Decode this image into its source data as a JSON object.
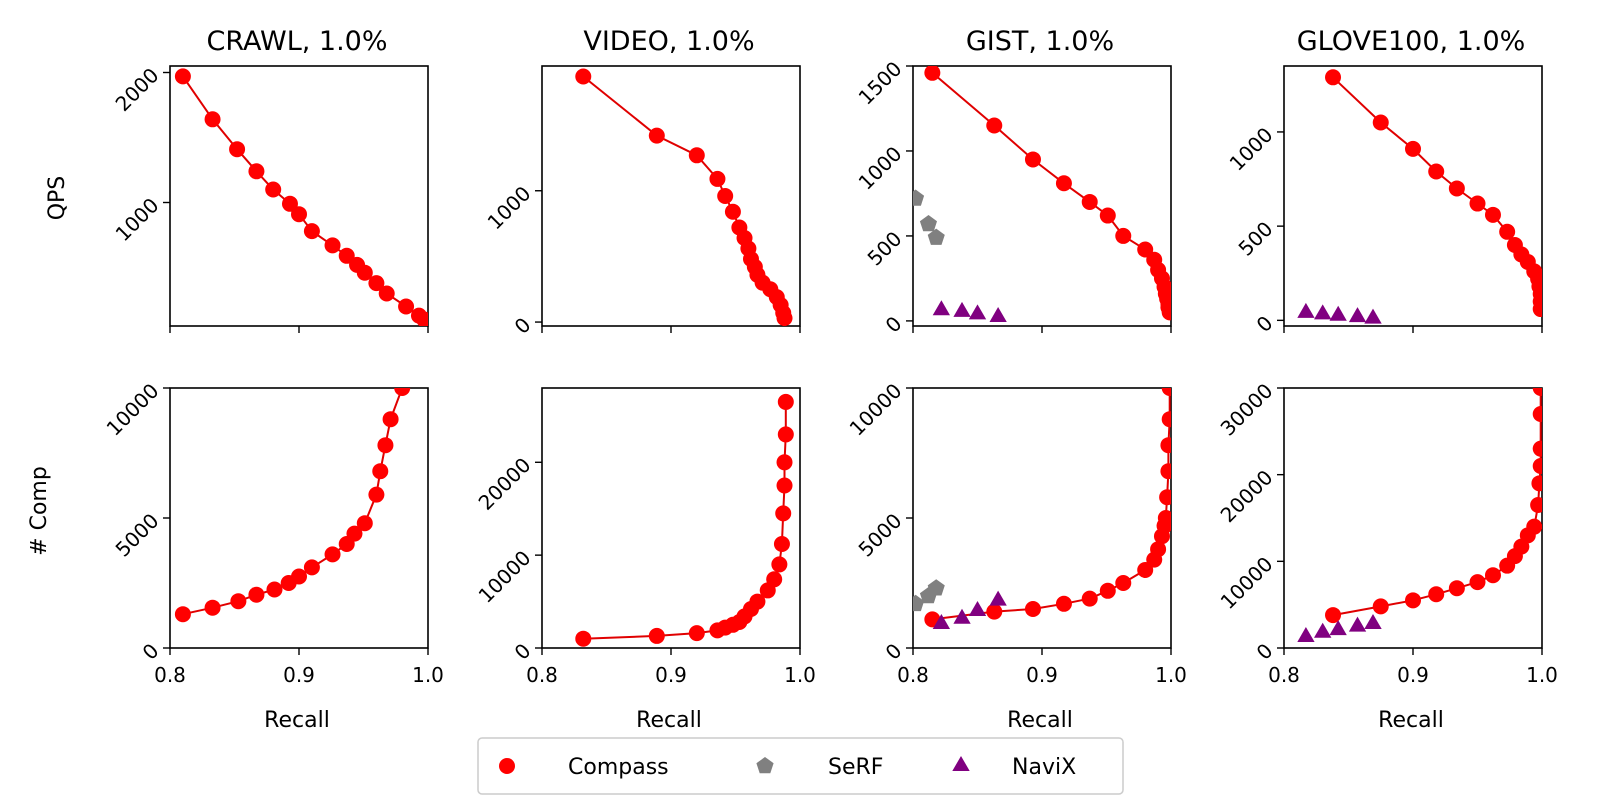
{
  "legend": [
    "Compass",
    "SeRF",
    "NaviX"
  ],
  "colors": {
    "Compass": "#ff0000",
    "Compass_line": "#e00000",
    "SeRF": "#808080",
    "NaviX": "#800080"
  },
  "marker_shapes": {
    "Compass": "circle",
    "SeRF": "pentagon",
    "NaviX": "triangle"
  },
  "xlabel": "Recall",
  "ylabel_row1": "QPS",
  "ylabel_row2": "# Comp",
  "x_ticks": [
    0.8,
    0.9,
    1.0
  ],
  "chart_data": [
    {
      "type": "line",
      "title": "CRAWL, 1.0%",
      "row": 0,
      "col": 0,
      "xlim": [
        0.8,
        1.0
      ],
      "ylim": [
        50,
        2050
      ],
      "yticks": [
        1000,
        2000
      ],
      "series": [
        {
          "name": "Compass",
          "x": [
            0.81,
            0.833,
            0.852,
            0.867,
            0.88,
            0.893,
            0.9,
            0.91,
            0.926,
            0.937,
            0.945,
            0.951,
            0.96,
            0.968,
            0.983,
            0.993,
            0.997
          ],
          "y": [
            1970,
            1640,
            1410,
            1240,
            1100,
            990,
            910,
            780,
            670,
            590,
            520,
            460,
            380,
            300,
            200,
            130,
            100
          ]
        }
      ]
    },
    {
      "type": "line",
      "title": "VIDEO, 1.0%",
      "row": 0,
      "col": 1,
      "xlim": [
        0.8,
        1.0
      ],
      "ylim": [
        -30,
        1950
      ],
      "yticks": [
        0,
        1000
      ],
      "series": [
        {
          "name": "Compass",
          "x": [
            0.832,
            0.889,
            0.92,
            0.936,
            0.942,
            0.948,
            0.953,
            0.957,
            0.96,
            0.962,
            0.965,
            0.967,
            0.971,
            0.977,
            0.982,
            0.985,
            0.987,
            0.988
          ],
          "y": [
            1870,
            1420,
            1270,
            1090,
            960,
            840,
            720,
            640,
            560,
            480,
            420,
            360,
            300,
            250,
            190,
            130,
            70,
            30
          ]
        }
      ]
    },
    {
      "type": "line",
      "title": "GIST, 1.0%",
      "row": 0,
      "col": 2,
      "xlim": [
        0.8,
        1.0
      ],
      "ylim": [
        -30,
        1500
      ],
      "yticks": [
        0,
        500,
        1000,
        1500
      ],
      "series": [
        {
          "name": "Compass",
          "x": [
            0.815,
            0.863,
            0.893,
            0.917,
            0.937,
            0.951,
            0.963,
            0.98,
            0.987,
            0.99,
            0.993,
            0.995,
            0.996,
            0.997,
            0.998,
            0.998,
            0.999,
            0.999
          ],
          "y": [
            1460,
            1150,
            950,
            810,
            700,
            620,
            500,
            420,
            360,
            300,
            250,
            200,
            160,
            130,
            100,
            80,
            60,
            50
          ]
        },
        {
          "name": "SeRF",
          "x": [
            0.802,
            0.812,
            0.818
          ],
          "y": [
            720,
            570,
            490
          ]
        },
        {
          "name": "NaviX",
          "x": [
            0.822,
            0.838,
            0.85,
            0.866
          ],
          "y": [
            75,
            65,
            50,
            35
          ]
        }
      ]
    },
    {
      "type": "line",
      "title": "GLOVE100, 1.0%",
      "row": 0,
      "col": 3,
      "xlim": [
        0.8,
        1.0
      ],
      "ylim": [
        -30,
        1350
      ],
      "yticks": [
        0,
        500,
        1000
      ],
      "series": [
        {
          "name": "Compass",
          "x": [
            0.838,
            0.875,
            0.9,
            0.918,
            0.934,
            0.95,
            0.962,
            0.973,
            0.979,
            0.984,
            0.989,
            0.994,
            0.997,
            0.998,
            0.999,
            0.999,
            0.999
          ],
          "y": [
            1290,
            1050,
            910,
            790,
            700,
            620,
            560,
            470,
            400,
            350,
            310,
            260,
            220,
            180,
            140,
            100,
            60
          ]
        },
        {
          "name": "NaviX",
          "x": [
            0.817,
            0.83,
            0.842,
            0.857,
            0.869
          ],
          "y": [
            50,
            42,
            35,
            28,
            20
          ]
        }
      ]
    },
    {
      "type": "line",
      "row": 1,
      "col": 0,
      "xlim": [
        0.8,
        1.0
      ],
      "ylim": [
        0,
        10000
      ],
      "yticks": [
        0,
        5000,
        10000
      ],
      "series": [
        {
          "name": "Compass",
          "x": [
            0.81,
            0.833,
            0.853,
            0.867,
            0.881,
            0.892,
            0.9,
            0.91,
            0.926,
            0.937,
            0.943,
            0.951,
            0.96,
            0.963,
            0.967,
            0.971,
            0.98
          ],
          "y": [
            1300,
            1550,
            1800,
            2050,
            2250,
            2500,
            2750,
            3100,
            3600,
            4000,
            4400,
            4800,
            5900,
            6800,
            7800,
            8800,
            10000
          ]
        }
      ]
    },
    {
      "type": "line",
      "row": 1,
      "col": 1,
      "xlim": [
        0.8,
        1.0
      ],
      "ylim": [
        0,
        28000
      ],
      "yticks": [
        0,
        10000,
        20000
      ],
      "series": [
        {
          "name": "Compass",
          "x": [
            0.832,
            0.889,
            0.92,
            0.936,
            0.942,
            0.948,
            0.953,
            0.957,
            0.962,
            0.967,
            0.975,
            0.98,
            0.984,
            0.986,
            0.987,
            0.988,
            0.988,
            0.989,
            0.989
          ],
          "y": [
            1000,
            1300,
            1600,
            1900,
            2200,
            2500,
            2800,
            3400,
            4200,
            5000,
            6200,
            7400,
            9000,
            11200,
            14500,
            17500,
            20000,
            23000,
            26500
          ]
        }
      ]
    },
    {
      "type": "line",
      "row": 1,
      "col": 2,
      "xlim": [
        0.8,
        1.0
      ],
      "ylim": [
        0,
        10000
      ],
      "yticks": [
        0,
        5000,
        10000
      ],
      "series": [
        {
          "name": "Compass",
          "x": [
            0.815,
            0.863,
            0.893,
            0.917,
            0.937,
            0.951,
            0.963,
            0.98,
            0.987,
            0.99,
            0.993,
            0.995,
            0.996,
            0.997,
            0.998,
            0.998,
            0.999,
            0.999
          ],
          "y": [
            1100,
            1400,
            1500,
            1700,
            1900,
            2200,
            2500,
            3000,
            3400,
            3800,
            4300,
            4700,
            5000,
            5800,
            6800,
            7800,
            8800,
            10000
          ]
        },
        {
          "name": "SeRF",
          "x": [
            0.802,
            0.812,
            0.818
          ],
          "y": [
            1700,
            2000,
            2300
          ]
        },
        {
          "name": "NaviX",
          "x": [
            0.822,
            0.838,
            0.85,
            0.866
          ],
          "y": [
            1000,
            1200,
            1500,
            1900
          ]
        }
      ]
    },
    {
      "type": "line",
      "row": 1,
      "col": 3,
      "xlim": [
        0.8,
        1.0
      ],
      "ylim": [
        0,
        30000
      ],
      "yticks": [
        0,
        10000,
        20000,
        30000
      ],
      "series": [
        {
          "name": "Compass",
          "x": [
            0.838,
            0.875,
            0.9,
            0.918,
            0.934,
            0.95,
            0.962,
            0.973,
            0.979,
            0.984,
            0.989,
            0.994,
            0.997,
            0.998,
            0.999,
            0.999,
            0.999,
            0.999
          ],
          "y": [
            3800,
            4800,
            5500,
            6200,
            6900,
            7600,
            8400,
            9500,
            10600,
            11700,
            13000,
            14000,
            16500,
            19000,
            21000,
            23000,
            27000,
            30000
          ]
        },
        {
          "name": "NaviX",
          "x": [
            0.817,
            0.83,
            0.842,
            0.857,
            0.869
          ],
          "y": [
            1500,
            2000,
            2300,
            2700,
            3000
          ]
        }
      ]
    }
  ]
}
